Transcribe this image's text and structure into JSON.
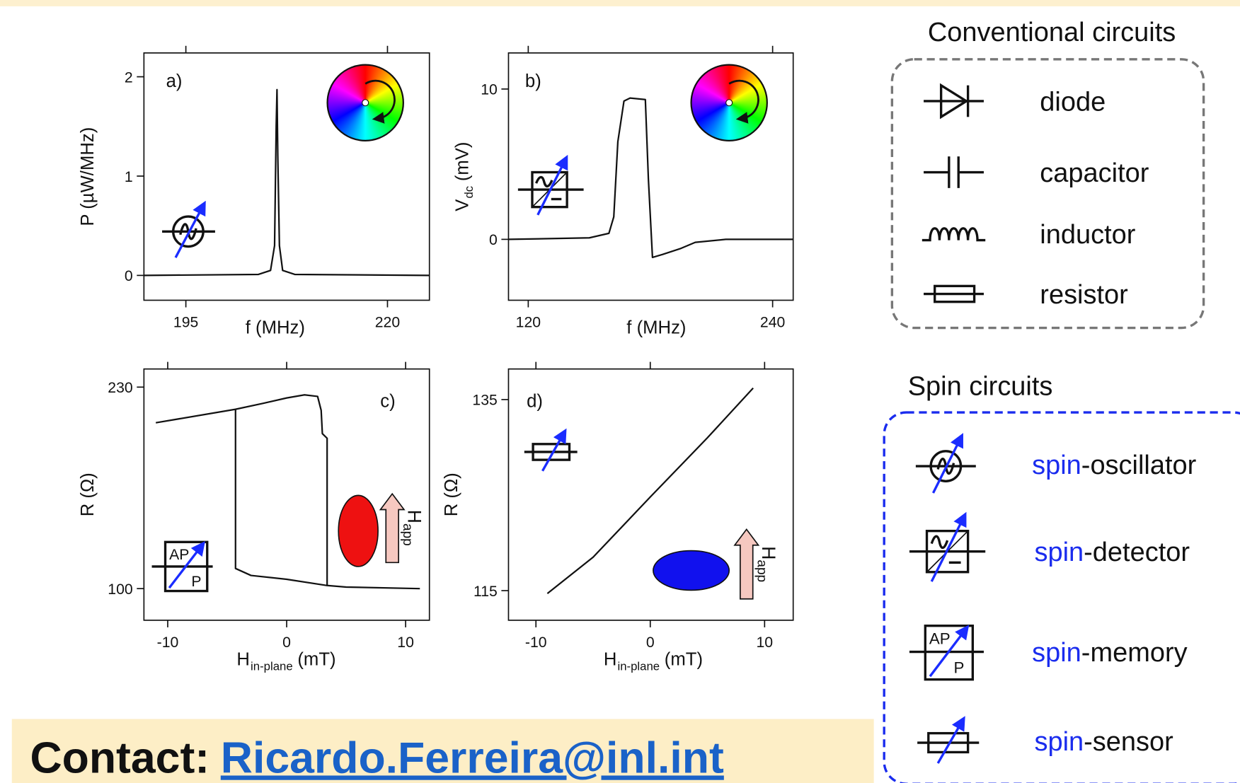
{
  "chart_data": [
    {
      "type": "line",
      "panel_label": "a)",
      "xlabel": "f (MHz)",
      "ylabel": "P (µW/MHz)",
      "xlim": [
        189.8,
        225.2
      ],
      "ylim": [
        -0.25,
        2.24
      ],
      "xticks": [
        195,
        220
      ],
      "yticks": [
        0,
        1,
        2
      ],
      "series": [
        {
          "color": "#111111",
          "x": [
            189.8,
            204,
            205.5,
            206,
            206.2,
            206.3,
            206.4,
            206.6,
            207,
            208.5,
            225.2
          ],
          "values": [
            0,
            0.01,
            0.05,
            0.3,
            1.5,
            1.87,
            1.2,
            0.3,
            0.05,
            0.01,
            0
          ]
        }
      ]
    },
    {
      "type": "line",
      "panel_label": "b)",
      "xlabel": "f (MHz)",
      "ylabel": "V",
      "ylabel_sub": "dc",
      "ylabel_unit": "(mV)",
      "xlim": [
        110.3,
        250.1
      ],
      "ylim": [
        -4.05,
        12.4
      ],
      "xticks": [
        120,
        240
      ],
      "yticks": [
        0,
        10
      ],
      "series": [
        {
          "color": "#111111",
          "x": [
            110.3,
            150,
            159.6,
            162,
            164,
            167,
            170,
            177.5,
            179,
            181,
            186,
            195,
            202,
            217,
            250.1
          ],
          "values": [
            0,
            0.1,
            0.4,
            1.5,
            6.5,
            9.2,
            9.4,
            9.3,
            4,
            -1.2,
            -1.0,
            -0.6,
            -0.2,
            0,
            0
          ]
        }
      ]
    },
    {
      "type": "line",
      "panel_label": "c)",
      "xlabel": "H",
      "xlabel_sub": "in-plane",
      "xlabel_unit": "(mT)",
      "ylabel": "R (Ω)",
      "field_label": "H",
      "field_sub": "app",
      "xlim": [
        -12.0,
        12.0
      ],
      "ylim": [
        79.6,
        241.7
      ],
      "xticks": [
        -10,
        0,
        10
      ],
      "yticks": [
        100,
        230
      ],
      "series": [
        {
          "color": "#111111",
          "x": [
            -11,
            -4.3,
            -2,
            0,
            1.5,
            2.6,
            2.9,
            3.0,
            3.4,
            3.4,
            5,
            11.2
          ],
          "values": [
            207,
            215.7,
            219.5,
            223,
            225,
            224,
            215,
            200,
            197,
            102,
            101,
            100
          ]
        },
        {
          "color": "#111111",
          "x": [
            -4.3,
            -4.3,
            -3,
            0,
            3.4
          ],
          "values": [
            215.7,
            113,
            108.5,
            106,
            102
          ]
        }
      ]
    },
    {
      "type": "line",
      "panel_label": "d)",
      "xlabel": "H",
      "xlabel_sub": "in-plane",
      "xlabel_unit": "(mT)",
      "ylabel": "R (Ω)",
      "field_label": "H",
      "field_sub": "app",
      "xlim": [
        -12.4,
        12.5
      ],
      "ylim": [
        111.9,
        138.2
      ],
      "xticks": [
        -10,
        0,
        10
      ],
      "yticks": [
        115,
        135
      ],
      "series": [
        {
          "color": "#111111",
          "x": [
            -9,
            -5,
            0,
            5,
            9
          ],
          "values": [
            114.7,
            118.5,
            124.8,
            131,
            136.2
          ]
        }
      ]
    }
  ],
  "icons": {
    "memory_high": "AP",
    "memory_low": "P"
  },
  "conventional_circuits": {
    "title": "Conventional circuits",
    "items": [
      "diode",
      "capacitor",
      "inductor",
      "resistor"
    ]
  },
  "spin_circuits": {
    "title": "Spin circuits",
    "prefix": "spin",
    "items": [
      "-oscillator",
      "-detector",
      "-memory",
      "-sensor"
    ]
  },
  "contact": {
    "label": "Contact:",
    "email": "Ricardo.Ferreira@inl.int"
  }
}
